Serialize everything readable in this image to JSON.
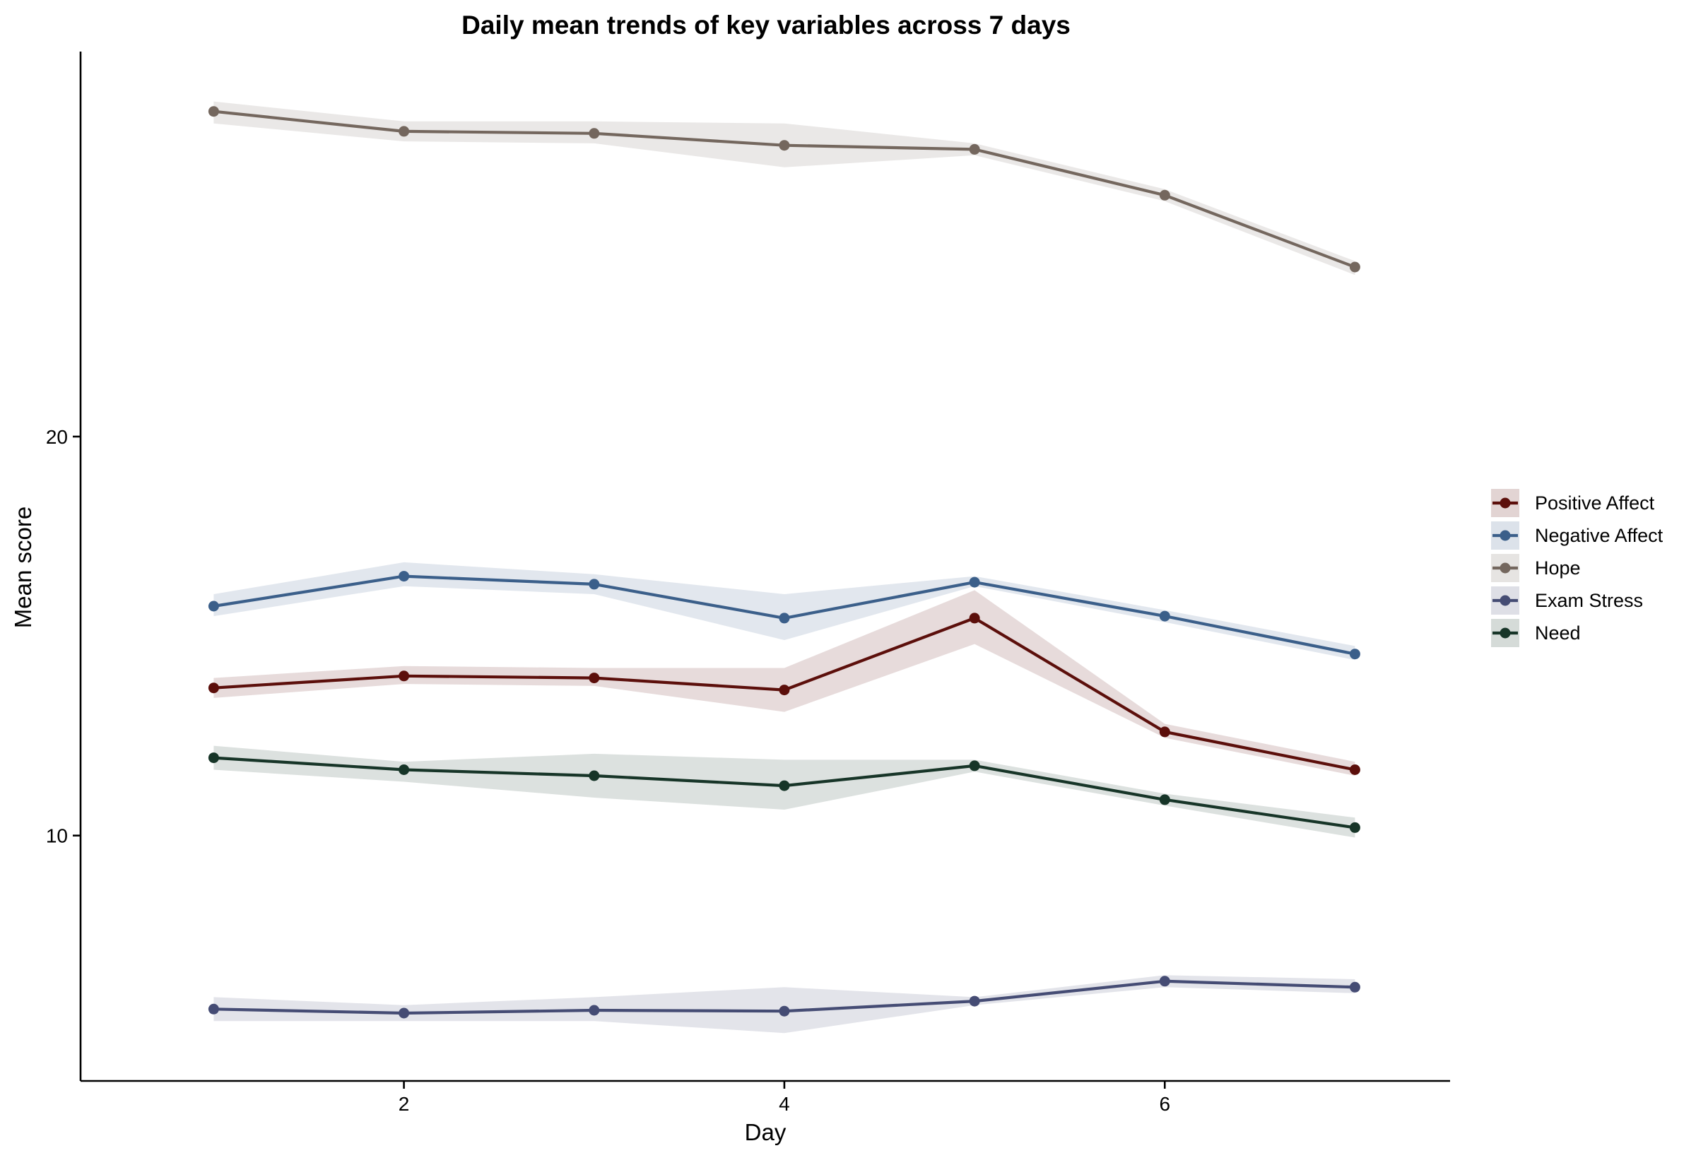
{
  "chart_data": {
    "type": "line",
    "title": "Daily mean trends of key variables across 7 days",
    "xlabel": "Day",
    "ylabel": "Mean score",
    "x": [
      1,
      2,
      3,
      4,
      5,
      6,
      7
    ],
    "xlim": [
      0.3,
      7.5
    ],
    "ylim": [
      3.85,
      29.65
    ],
    "x_ticks": [
      2,
      4,
      6
    ],
    "y_ticks": [
      10,
      20
    ],
    "grid": false,
    "legend_position": "right",
    "series": [
      {
        "name": "Positive Affect",
        "color": "#5c0f0b",
        "values": [
          13.7,
          14.0,
          13.95,
          13.65,
          15.45,
          12.6,
          11.65
        ],
        "lower": [
          13.45,
          13.8,
          13.75,
          13.1,
          14.8,
          12.45,
          11.5
        ],
        "upper": [
          13.95,
          14.25,
          14.2,
          14.2,
          16.15,
          12.8,
          11.85
        ]
      },
      {
        "name": "Negative Affect",
        "color": "#3b5f8a",
        "values": [
          15.75,
          16.5,
          16.3,
          15.45,
          16.35,
          15.5,
          14.55
        ],
        "lower": [
          15.5,
          16.25,
          16.05,
          14.9,
          16.25,
          15.35,
          14.4
        ],
        "upper": [
          16.05,
          16.85,
          16.55,
          16.05,
          16.5,
          15.65,
          14.75
        ]
      },
      {
        "name": "Hope",
        "color": "#74675e",
        "values": [
          28.15,
          27.65,
          27.6,
          27.3,
          27.2,
          26.05,
          24.25
        ],
        "lower": [
          27.85,
          27.4,
          27.35,
          26.75,
          27.05,
          25.9,
          24.05
        ],
        "upper": [
          28.4,
          27.9,
          27.9,
          27.85,
          27.35,
          26.2,
          24.4
        ]
      },
      {
        "name": "Exam Stress",
        "color": "#454c74",
        "values": [
          5.65,
          5.55,
          5.62,
          5.6,
          5.85,
          6.35,
          6.2
        ],
        "lower": [
          5.35,
          5.35,
          5.35,
          5.05,
          5.75,
          6.2,
          6.05
        ],
        "upper": [
          5.95,
          5.75,
          5.95,
          6.2,
          5.95,
          6.5,
          6.4
        ]
      },
      {
        "name": "Need",
        "color": "#173528",
        "values": [
          11.95,
          11.65,
          11.5,
          11.25,
          11.75,
          10.9,
          10.2
        ],
        "lower": [
          11.65,
          11.35,
          10.95,
          10.65,
          11.6,
          10.75,
          9.95
        ],
        "upper": [
          12.25,
          11.85,
          12.05,
          11.9,
          11.9,
          11.05,
          10.45
        ]
      }
    ]
  }
}
